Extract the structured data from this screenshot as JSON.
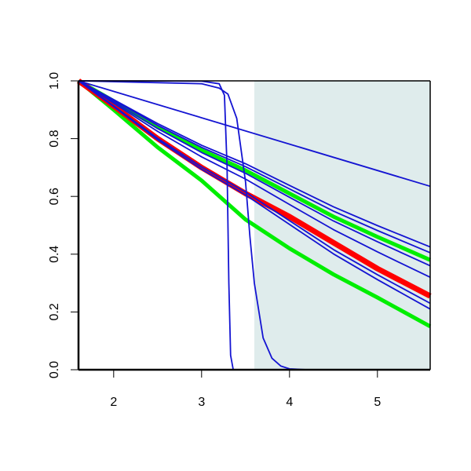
{
  "chart_data": {
    "type": "line",
    "xlim": [
      1.6,
      5.6
    ],
    "ylim": [
      0,
      1
    ],
    "xticks": [
      2,
      3,
      4,
      5
    ],
    "yticks": [
      {
        "value": 0,
        "label": "0.0"
      },
      {
        "value": 0.2,
        "label": "0.2"
      },
      {
        "value": 0.4,
        "label": "0.4"
      },
      {
        "value": 0.6,
        "label": "0.6"
      },
      {
        "value": 0.8,
        "label": "0.8"
      },
      {
        "value": 1,
        "label": "1.0"
      }
    ],
    "shaded_region": {
      "x": [
        3.6,
        5.6
      ],
      "color": "#dfecec"
    },
    "series": [
      {
        "color": "#00ee00",
        "width": 5,
        "x": [
          1.6,
          2,
          2.5,
          3,
          3.5,
          4,
          4.5,
          5,
          5.6
        ],
        "values": [
          1,
          0.93,
          0.84,
          0.76,
          0.69,
          0.61,
          0.53,
          0.46,
          0.38
        ]
      },
      {
        "color": "#00ee00",
        "width": 5,
        "x": [
          1.6,
          2,
          2.5,
          3,
          3.5,
          4,
          4.5,
          5,
          5.6
        ],
        "values": [
          1,
          0.9,
          0.77,
          0.655,
          0.52,
          0.42,
          0.33,
          0.25,
          0.15
        ]
      },
      {
        "color": "#ff0000",
        "width": 7,
        "x": [
          1.6,
          2,
          2.5,
          3,
          3.5,
          4,
          4.5,
          5,
          5.6
        ],
        "values": [
          1,
          0.913,
          0.8,
          0.7,
          0.61,
          0.53,
          0.44,
          0.35,
          0.255
        ]
      },
      {
        "color": "#1414d2",
        "width": 1.8,
        "x": [
          1.6,
          5.6
        ],
        "values": [
          1,
          0.635
        ]
      },
      {
        "color": "#1414d2",
        "width": 1.8,
        "x": [
          1.6,
          2,
          2.5,
          3,
          3.5,
          4,
          4.5,
          5,
          5.6
        ],
        "values": [
          1,
          0.935,
          0.852,
          0.777,
          0.713,
          0.638,
          0.564,
          0.499,
          0.425
        ]
      },
      {
        "color": "#1414d2",
        "width": 1.8,
        "x": [
          1.6,
          2,
          2.5,
          3,
          3.5,
          4,
          4.5,
          5,
          5.6
        ],
        "values": [
          1,
          0.933,
          0.846,
          0.77,
          0.703,
          0.626,
          0.549,
          0.482,
          0.405
        ]
      },
      {
        "color": "#1414d2",
        "width": 1.8,
        "x": [
          1.6,
          2,
          2.5,
          3,
          3.5,
          4,
          4.5,
          5,
          5.6
        ],
        "values": [
          1,
          0.928,
          0.835,
          0.752,
          0.68,
          0.597,
          0.515,
          0.443,
          0.36
        ]
      },
      {
        "color": "#1414d2",
        "width": 1.8,
        "x": [
          1.6,
          2,
          2.5,
          3,
          3.5,
          4,
          4.5,
          5,
          5.6
        ],
        "values": [
          1,
          0.923,
          0.825,
          0.737,
          0.66,
          0.572,
          0.485,
          0.408,
          0.32
        ]
      },
      {
        "color": "#1414d2",
        "width": 1.8,
        "x": [
          1.6,
          2,
          2.5,
          3,
          3.5,
          4,
          4.5,
          5,
          5.6
        ],
        "values": [
          1,
          0.913,
          0.801,
          0.702,
          0.615,
          0.516,
          0.416,
          0.329,
          0.23
        ]
      },
      {
        "color": "#1414d2",
        "width": 1.8,
        "x": [
          1.6,
          2,
          2.5,
          3,
          3.5,
          4,
          4.5,
          5,
          5.6
        ],
        "values": [
          1,
          0.911,
          0.796,
          0.694,
          0.605,
          0.503,
          0.401,
          0.312,
          0.21
        ]
      },
      {
        "color": "#1414d2",
        "width": 1.8,
        "x": [
          1.6,
          3.0,
          3.2,
          3.26,
          3.29,
          3.31,
          3.33,
          3.36,
          5.6
        ],
        "values": [
          1,
          0.999,
          0.99,
          0.95,
          0.7,
          0.3,
          0.05,
          0,
          0
        ]
      },
      {
        "color": "#1414d2",
        "width": 1.8,
        "x": [
          1.6,
          3.0,
          3.2,
          3.3,
          3.4,
          3.5,
          3.55,
          3.6,
          3.7,
          3.8,
          3.9,
          4.0,
          4.2,
          5.6
        ],
        "values": [
          1,
          0.99,
          0.975,
          0.954,
          0.87,
          0.65,
          0.46,
          0.3,
          0.11,
          0.04,
          0.013,
          0.003,
          0,
          0
        ]
      }
    ]
  }
}
